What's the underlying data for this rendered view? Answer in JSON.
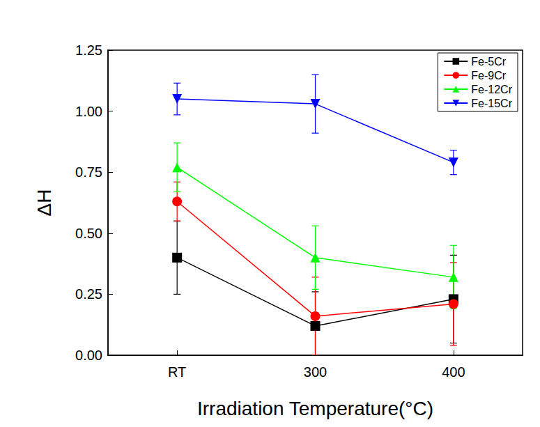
{
  "chart_data": {
    "type": "line",
    "x_label": "Irradiation Temperature(°C)",
    "y_label": "ΔH",
    "categories": [
      "RT",
      "300",
      "400"
    ],
    "ylim": [
      0,
      1.25
    ],
    "yticks": [
      {
        "value": 0,
        "label": "0.00"
      },
      {
        "value": 0.25,
        "label": "0.25"
      },
      {
        "value": 0.5,
        "label": "0.50"
      },
      {
        "value": 0.75,
        "label": "0.75"
      },
      {
        "value": 1,
        "label": "1.00"
      },
      {
        "value": 1.25,
        "label": "1.25"
      }
    ],
    "grid": false,
    "legend": "upper right",
    "series": [
      {
        "name": "Fe-5Cr",
        "color": "#000000",
        "marker": "square",
        "values": [
          0.4,
          0.12,
          0.23
        ],
        "errors": [
          0.15,
          0.14,
          0.18
        ]
      },
      {
        "name": "Fe-9Cr",
        "color": "#ff0000",
        "marker": "circle",
        "values": [
          0.63,
          0.16,
          0.21
        ],
        "errors": [
          0.08,
          0.16,
          0.17
        ]
      },
      {
        "name": "Fe-12Cr",
        "color": "#00ff00",
        "marker": "triangle-up",
        "values": [
          0.77,
          0.4,
          0.32
        ],
        "errors": [
          0.1,
          0.13,
          0.13
        ]
      },
      {
        "name": "Fe-15Cr",
        "color": "#0000ff",
        "marker": "triangle-down",
        "values": [
          1.05,
          1.03,
          0.79
        ],
        "errors": [
          0.065,
          0.12,
          0.05
        ]
      }
    ]
  }
}
